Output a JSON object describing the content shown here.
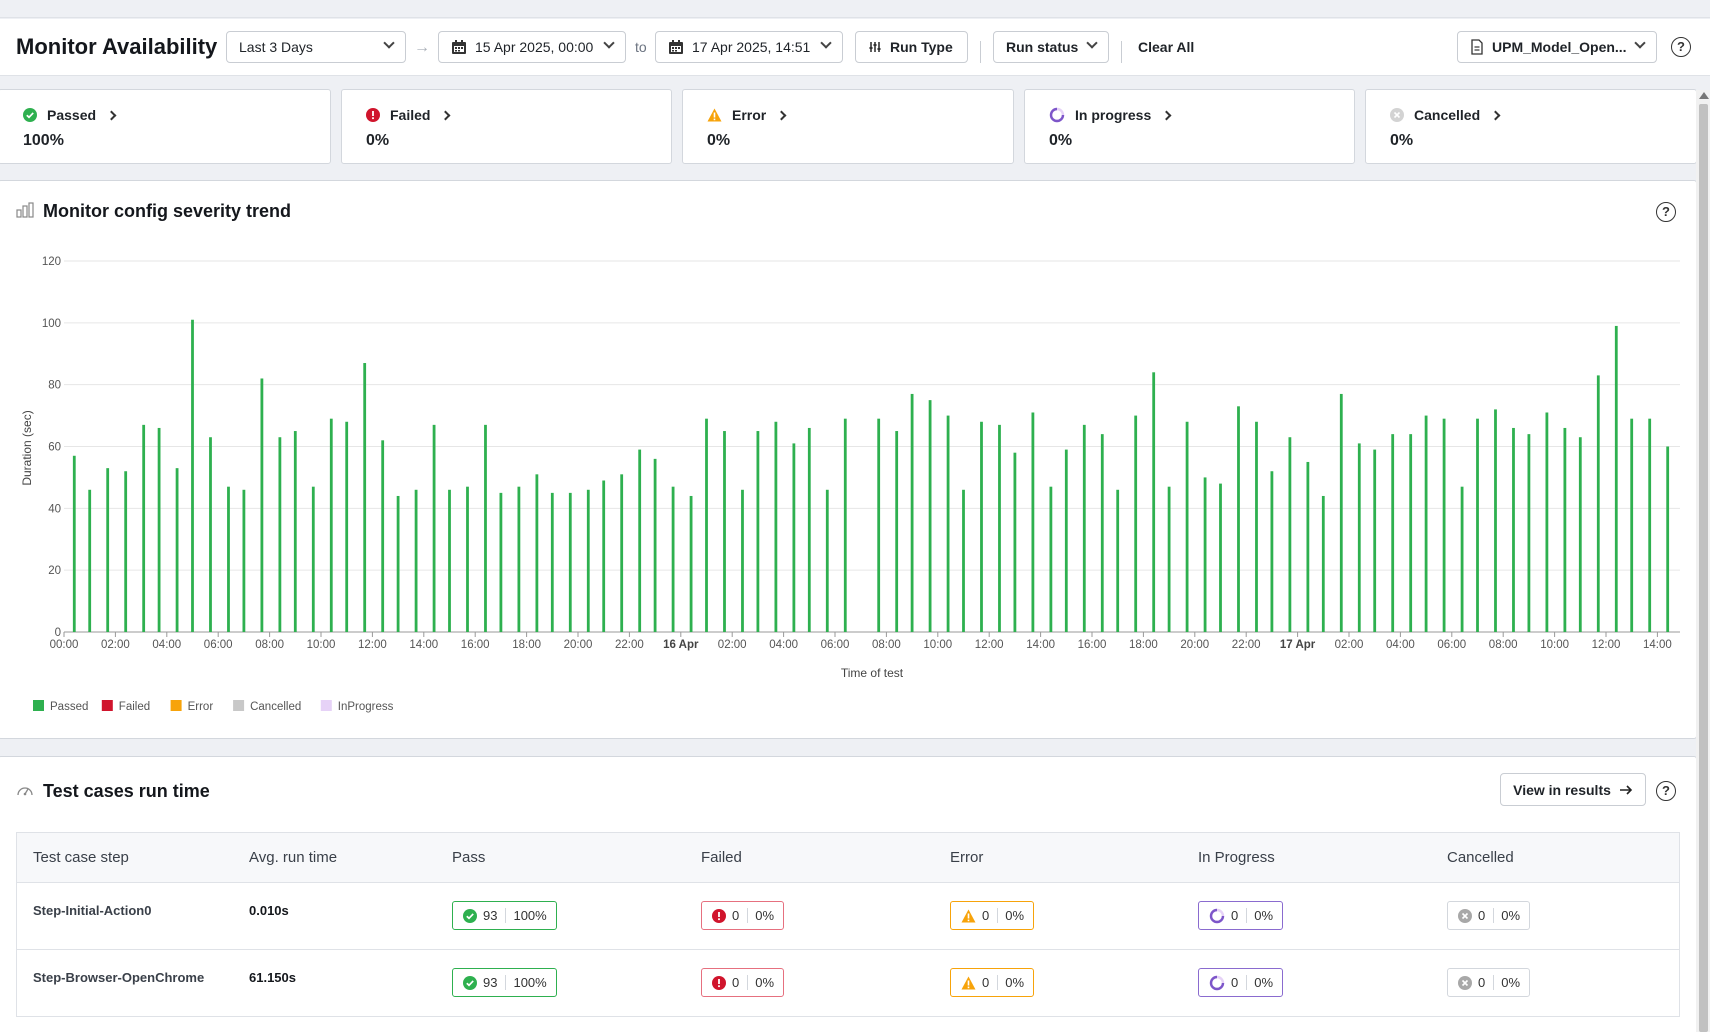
{
  "header": {
    "title": "Monitor Availability",
    "range_select": "Last 3 Days",
    "date_from": "15 Apr 2025, 00:00",
    "to_label": "to",
    "date_to": "17 Apr 2025, 14:51",
    "run_type_label": "Run Type",
    "run_status_label": "Run status",
    "clear_all_label": "Clear All",
    "monitor_select": "UPM_Model_Open..."
  },
  "cards": [
    {
      "label": "Passed",
      "value": "100%"
    },
    {
      "label": "Failed",
      "value": "0%"
    },
    {
      "label": "Error",
      "value": "0%"
    },
    {
      "label": "In progress",
      "value": "0%"
    },
    {
      "label": "Cancelled",
      "value": "0%"
    }
  ],
  "colors": {
    "passed": "#2eb04f",
    "failed": "#d0142c",
    "error": "#f7a30a",
    "cancelled": "#c8c8c8",
    "inprogress": "#e6d2f7",
    "inprogress_icon": "#7d56c9"
  },
  "chart_panel": {
    "title": "Monitor config severity trend"
  },
  "chart_data": {
    "type": "bar",
    "title": "",
    "xlabel": "Time of test",
    "ylabel": "Duration (sec)",
    "ylim": [
      0,
      120
    ],
    "yticks": [
      0,
      20,
      40,
      60,
      80,
      100,
      120
    ],
    "grid": true,
    "legend_position": "bottom-left",
    "x_ticks": [
      {
        "label": "00:00",
        "hour": 0
      },
      {
        "label": "02:00",
        "hour": 2
      },
      {
        "label": "04:00",
        "hour": 4
      },
      {
        "label": "06:00",
        "hour": 6
      },
      {
        "label": "08:00",
        "hour": 8
      },
      {
        "label": "10:00",
        "hour": 10
      },
      {
        "label": "12:00",
        "hour": 12
      },
      {
        "label": "14:00",
        "hour": 14
      },
      {
        "label": "16:00",
        "hour": 16
      },
      {
        "label": "18:00",
        "hour": 18
      },
      {
        "label": "20:00",
        "hour": 20
      },
      {
        "label": "22:00",
        "hour": 22
      },
      {
        "label": "16 Apr",
        "hour": 24,
        "bold": true
      },
      {
        "label": "02:00",
        "hour": 26
      },
      {
        "label": "04:00",
        "hour": 28
      },
      {
        "label": "06:00",
        "hour": 30
      },
      {
        "label": "08:00",
        "hour": 32
      },
      {
        "label": "10:00",
        "hour": 34
      },
      {
        "label": "12:00",
        "hour": 36
      },
      {
        "label": "14:00",
        "hour": 38
      },
      {
        "label": "16:00",
        "hour": 40
      },
      {
        "label": "18:00",
        "hour": 42
      },
      {
        "label": "20:00",
        "hour": 44
      },
      {
        "label": "22:00",
        "hour": 46
      },
      {
        "label": "17 Apr",
        "hour": 48,
        "bold": true
      },
      {
        "label": "02:00",
        "hour": 50
      },
      {
        "label": "04:00",
        "hour": 52
      },
      {
        "label": "06:00",
        "hour": 54
      },
      {
        "label": "08:00",
        "hour": 56
      },
      {
        "label": "10:00",
        "hour": 58
      },
      {
        "label": "12:00",
        "hour": 60
      },
      {
        "label": "14:00",
        "hour": 62
      }
    ],
    "series": [
      {
        "name": "Passed",
        "points": [
          [
            0.4,
            57
          ],
          [
            1.0,
            46
          ],
          [
            1.7,
            53
          ],
          [
            2.4,
            52
          ],
          [
            3.1,
            67
          ],
          [
            3.7,
            66
          ],
          [
            4.4,
            53
          ],
          [
            5.0,
            101
          ],
          [
            5.7,
            63
          ],
          [
            6.4,
            47
          ],
          [
            7.0,
            46
          ],
          [
            7.7,
            82
          ],
          [
            8.4,
            63
          ],
          [
            9.0,
            65
          ],
          [
            9.7,
            47
          ],
          [
            10.4,
            69
          ],
          [
            11.0,
            68
          ],
          [
            11.7,
            87
          ],
          [
            12.4,
            62
          ],
          [
            13.0,
            44
          ],
          [
            13.7,
            46
          ],
          [
            14.4,
            67
          ],
          [
            15.0,
            46
          ],
          [
            15.7,
            47
          ],
          [
            16.4,
            67
          ],
          [
            17.0,
            45
          ],
          [
            17.7,
            47
          ],
          [
            18.4,
            51
          ],
          [
            19.0,
            45
          ],
          [
            19.7,
            45
          ],
          [
            20.4,
            46
          ],
          [
            21.0,
            49
          ],
          [
            21.7,
            51
          ],
          [
            22.4,
            59
          ],
          [
            23.0,
            56
          ],
          [
            23.7,
            47
          ],
          [
            24.4,
            44
          ],
          [
            25.0,
            69
          ],
          [
            25.7,
            65
          ],
          [
            26.4,
            46
          ],
          [
            27.0,
            65
          ],
          [
            27.7,
            68
          ],
          [
            28.4,
            61
          ],
          [
            29.0,
            66
          ],
          [
            29.7,
            46
          ],
          [
            30.4,
            69
          ],
          [
            31.7,
            69
          ],
          [
            32.4,
            65
          ],
          [
            33.0,
            77
          ],
          [
            33.7,
            75
          ],
          [
            34.4,
            70
          ],
          [
            35.0,
            46
          ],
          [
            35.7,
            68
          ],
          [
            36.4,
            67
          ],
          [
            37.0,
            58
          ],
          [
            37.7,
            71
          ],
          [
            38.4,
            47
          ],
          [
            39.0,
            59
          ],
          [
            39.7,
            67
          ],
          [
            40.4,
            64
          ],
          [
            41.0,
            46
          ],
          [
            41.7,
            70
          ],
          [
            42.4,
            84
          ],
          [
            43.0,
            47
          ],
          [
            43.7,
            68
          ],
          [
            44.4,
            50
          ],
          [
            45.0,
            48
          ],
          [
            45.7,
            73
          ],
          [
            46.4,
            68
          ],
          [
            47.0,
            52
          ],
          [
            47.7,
            63
          ],
          [
            48.4,
            55
          ],
          [
            49.0,
            44
          ],
          [
            49.7,
            77
          ],
          [
            50.4,
            61
          ],
          [
            51.0,
            59
          ],
          [
            51.7,
            64
          ],
          [
            52.4,
            64
          ],
          [
            53.0,
            70
          ],
          [
            53.7,
            69
          ],
          [
            54.4,
            47
          ],
          [
            55.0,
            69
          ],
          [
            55.7,
            72
          ],
          [
            56.4,
            66
          ],
          [
            57.0,
            64
          ],
          [
            57.7,
            71
          ],
          [
            58.4,
            66
          ],
          [
            59.0,
            63
          ],
          [
            59.7,
            83
          ],
          [
            60.4,
            99
          ],
          [
            61.0,
            69
          ],
          [
            61.7,
            69
          ],
          [
            62.4,
            60
          ]
        ]
      }
    ],
    "legend": [
      "Passed",
      "Failed",
      "Error",
      "Cancelled",
      "InProgress"
    ]
  },
  "table_panel": {
    "title": "Test cases run time",
    "view_button": "View in results",
    "columns": [
      "Test case step",
      "Avg. run time",
      "Pass",
      "Failed",
      "Error",
      "In Progress",
      "Cancelled"
    ],
    "rows": [
      {
        "step": "Step-Initial-Action0",
        "avg": "0.010s",
        "pass": {
          "count": "93",
          "pct": "100%"
        },
        "failed": {
          "count": "0",
          "pct": "0%"
        },
        "error": {
          "count": "0",
          "pct": "0%"
        },
        "inprogress": {
          "count": "0",
          "pct": "0%"
        },
        "cancelled": {
          "count": "0",
          "pct": "0%"
        }
      },
      {
        "step": "Step-Browser-OpenChrome",
        "avg": "61.150s",
        "pass": {
          "count": "93",
          "pct": "100%"
        },
        "failed": {
          "count": "0",
          "pct": "0%"
        },
        "error": {
          "count": "0",
          "pct": "0%"
        },
        "inprogress": {
          "count": "0",
          "pct": "0%"
        },
        "cancelled": {
          "count": "0",
          "pct": "0%"
        }
      }
    ]
  }
}
